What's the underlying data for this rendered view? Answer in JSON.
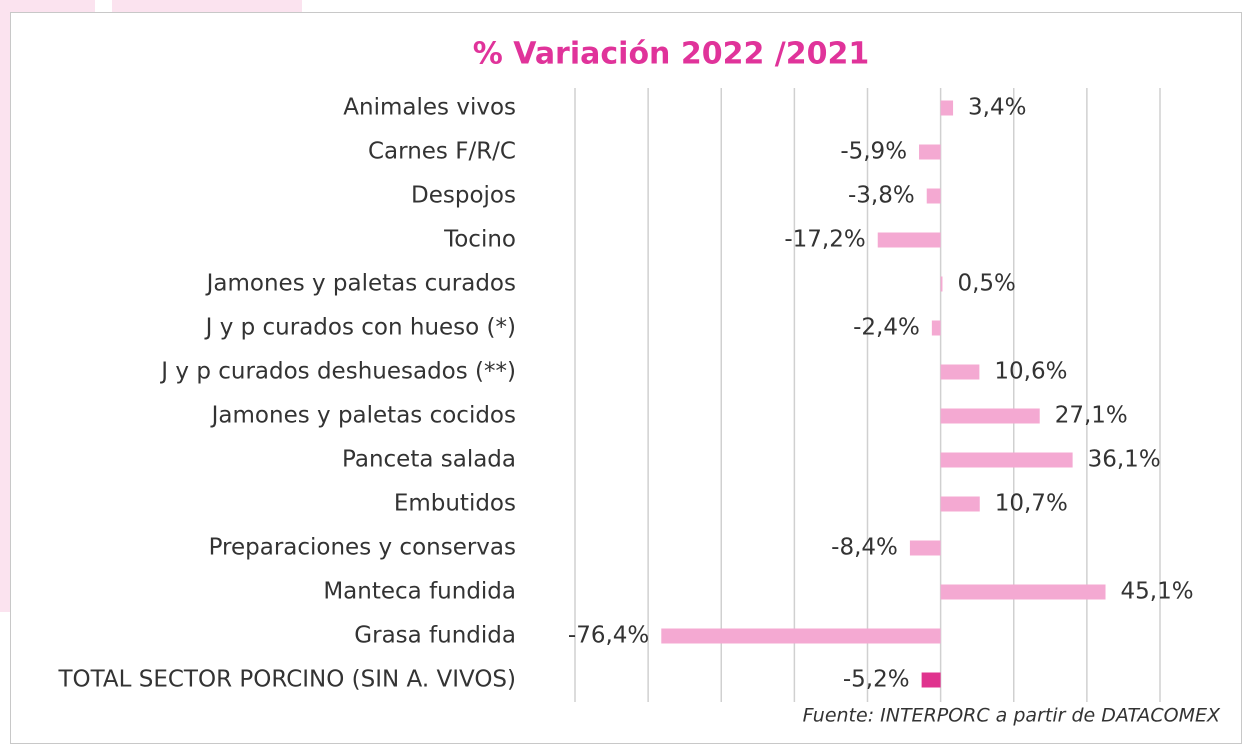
{
  "chart_data": {
    "type": "bar",
    "orientation": "horizontal",
    "title": "% Variación 2022 /2021",
    "categories": [
      "Animales vivos",
      "Carnes F/R/C",
      "Despojos",
      "Tocino",
      "Jamones y paletas curados",
      "J y p curados con hueso (*)",
      "J y p curados deshuesados (**)",
      "Jamones y paletas cocidos",
      "Panceta salada",
      "Embutidos",
      "Preparaciones y conservas",
      "Manteca fundida",
      "Grasa fundida",
      "TOTAL SECTOR PORCINO (SIN A. VIVOS)"
    ],
    "values": [
      3.4,
      -5.9,
      -3.8,
      -17.2,
      0.5,
      -2.4,
      10.6,
      27.1,
      36.1,
      10.7,
      -8.4,
      45.1,
      -76.4,
      -5.2
    ],
    "value_labels": [
      "3,4%",
      "-5,9%",
      "-3,8%",
      "-17,2%",
      "0,5%",
      "-2,4%",
      "10,6%",
      "27,1%",
      "36,1%",
      "10,7%",
      "-8,4%",
      "45,1%",
      "-76,4%",
      "-5,2%"
    ],
    "colors": [
      "#f4a9d2",
      "#f4a9d2",
      "#f4a9d2",
      "#f4a9d2",
      "#f4a9d2",
      "#f4a9d2",
      "#f4a9d2",
      "#f4a9d2",
      "#f4a9d2",
      "#f4a9d2",
      "#f4a9d2",
      "#f4a9d2",
      "#f4a9d2",
      "#e0338e"
    ],
    "title_color": "#e0339a",
    "xlim": [
      -100,
      60
    ],
    "xticks": [
      -100,
      -80,
      -60,
      -40,
      -20,
      0,
      20,
      40,
      60
    ],
    "grid": true,
    "source": "Fuente: INTERPORC  a partir de DATACOMEX"
  }
}
